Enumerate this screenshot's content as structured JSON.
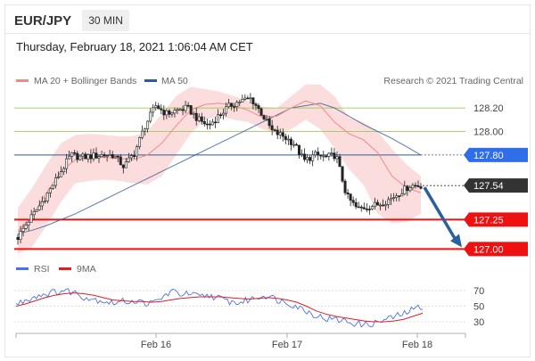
{
  "header": {
    "symbol": "EUR/JPY",
    "timeframe": "30 MIN"
  },
  "timestamp": "Thursday, February 18, 2021 1:06:04 AM CET",
  "legend": {
    "ma_bb": "MA 20 + Bollinger Bands",
    "ma50": "MA 50",
    "credit": "Research © 2021 Trading Central"
  },
  "rsi_legend": {
    "rsi": "RSI",
    "ma9": "9MA"
  },
  "colors": {
    "ma_bb": "#f08a8a",
    "ma50": "#2e5b9a",
    "rsi": "#4a72e8",
    "ma9": "#e02020",
    "resistance": "#8cc43c",
    "support": "#ee1111",
    "pivot": "#2e5b9a",
    "current": "#333333",
    "arrow": "#2c5f9f"
  },
  "chart_data": [
    {
      "type": "candlestick",
      "title": "EUR/JPY",
      "timeframe": "30 MIN",
      "x_labels": [
        "Feb 16",
        "Feb 17",
        "Feb 18"
      ],
      "y_range": [
        126.95,
        128.36
      ],
      "levels": [
        {
          "value": 128.2,
          "label": "128.20",
          "kind": "resistance"
        },
        {
          "value": 128.0,
          "label": "128.00",
          "kind": "resistance"
        },
        {
          "value": 127.8,
          "label": "127.80",
          "kind": "pivot"
        },
        {
          "value": 127.54,
          "label": "127.54",
          "kind": "current"
        },
        {
          "value": 127.25,
          "label": "127.25",
          "kind": "support"
        },
        {
          "value": 127.0,
          "label": "127.00",
          "kind": "support"
        }
      ],
      "projection": {
        "from": 127.54,
        "to": 127.0,
        "direction": "down"
      },
      "ma50_path": [
        127.13,
        127.16,
        127.2,
        127.25,
        127.3,
        127.36,
        127.42,
        127.48,
        127.54,
        127.6,
        127.66,
        127.72,
        127.78,
        127.84,
        127.9,
        127.96,
        128.02,
        128.08,
        128.14,
        128.2,
        128.22,
        128.24,
        128.2,
        128.13,
        128.06,
        128.0,
        127.94,
        127.87,
        127.8
      ],
      "ma20_path": [
        127.15,
        127.28,
        127.48,
        127.66,
        127.76,
        127.78,
        127.78,
        127.77,
        127.76,
        127.8,
        127.9,
        128.05,
        128.18,
        128.23,
        128.24,
        128.22,
        128.18,
        128.12,
        128.13,
        128.2,
        128.26,
        128.22,
        128.08,
        127.98,
        127.93,
        127.82,
        127.62,
        127.52,
        127.48
      ],
      "bb_upper": [
        127.35,
        127.52,
        127.72,
        127.9,
        127.97,
        127.98,
        127.97,
        127.96,
        127.96,
        128.0,
        128.15,
        128.3,
        128.38,
        128.36,
        128.34,
        128.3,
        128.26,
        128.21,
        128.2,
        128.3,
        128.4,
        128.4,
        128.3,
        128.12,
        128.08,
        128.0,
        127.85,
        127.72,
        127.62
      ],
      "bb_lower": [
        126.96,
        127.02,
        127.2,
        127.4,
        127.56,
        127.58,
        127.59,
        127.58,
        127.56,
        127.55,
        127.62,
        127.8,
        127.98,
        128.1,
        128.13,
        128.1,
        128.08,
        128.02,
        127.98,
        128.02,
        128.1,
        128.02,
        127.86,
        127.68,
        127.55,
        127.3,
        127.22,
        127.23,
        127.3
      ],
      "price_path": [
        127.1,
        127.24,
        127.36,
        127.5,
        127.65,
        127.8,
        127.78,
        127.79,
        127.8,
        127.8,
        127.7,
        127.82,
        128.05,
        128.22,
        128.15,
        128.18,
        128.2,
        128.1,
        128.05,
        128.14,
        128.22,
        128.26,
        128.28,
        128.15,
        128.0,
        127.96,
        127.9,
        127.75,
        127.8,
        127.78,
        127.8,
        127.45,
        127.34,
        127.36,
        127.38,
        127.42,
        127.48,
        127.54,
        127.54
      ]
    },
    {
      "type": "line",
      "title": "RSI",
      "series": [
        {
          "name": "RSI",
          "values": [
            52,
            58,
            63,
            66,
            68,
            70,
            68,
            62,
            59,
            57,
            54,
            56,
            57,
            55,
            53,
            60,
            69,
            66,
            65,
            62,
            64,
            60,
            56,
            54,
            58,
            62,
            64,
            58,
            55,
            50,
            44,
            38,
            34,
            33,
            31,
            28,
            26,
            28,
            32,
            36,
            40,
            46,
            50
          ]
        },
        {
          "name": "9MA",
          "values": [
            50,
            53,
            57,
            61,
            64,
            66,
            67,
            66,
            64,
            61,
            58,
            57,
            56,
            56,
            55,
            56,
            58,
            60,
            61,
            62,
            62,
            62,
            61,
            60,
            59,
            60,
            61,
            60,
            58,
            55,
            50,
            44,
            40,
            37,
            35,
            33,
            31,
            30,
            30,
            31,
            33,
            37,
            41
          ]
        }
      ],
      "y_ticks": [
        70,
        50,
        30
      ]
    }
  ]
}
